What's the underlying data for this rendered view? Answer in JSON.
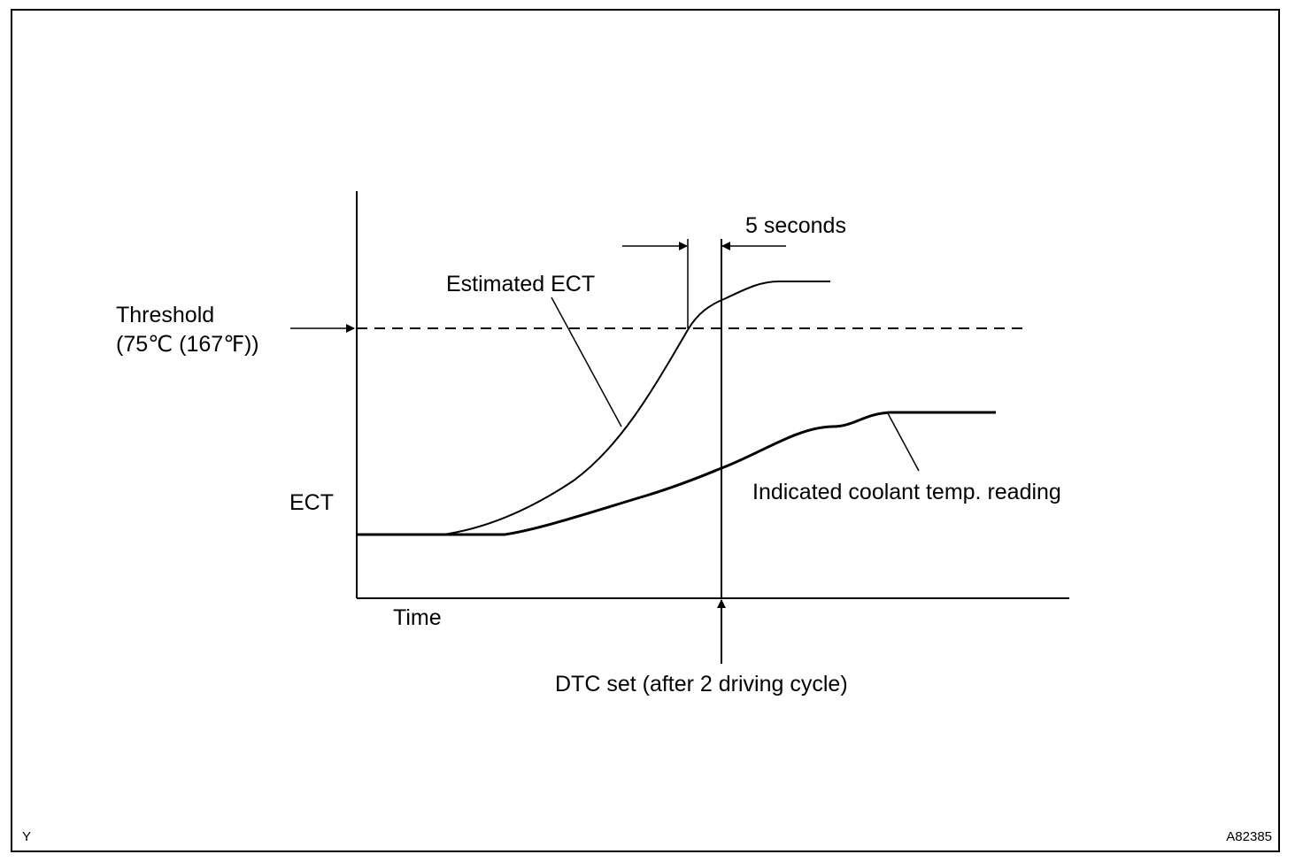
{
  "colors": {
    "ink": "#000000",
    "background": "#ffffff"
  },
  "labels": {
    "y_axis": "ECT",
    "x_axis": "Time",
    "threshold_title": "Threshold",
    "threshold_value": "(75℃ (167℉))",
    "estimated_ect": "Estimated ECT",
    "indicated_temp": "Indicated coolant temp. reading",
    "interval": "5 seconds",
    "dtc_set": "DTC set (after 2 driving cycle)"
  },
  "corner": {
    "left": "Y",
    "right": "A82385"
  }
}
